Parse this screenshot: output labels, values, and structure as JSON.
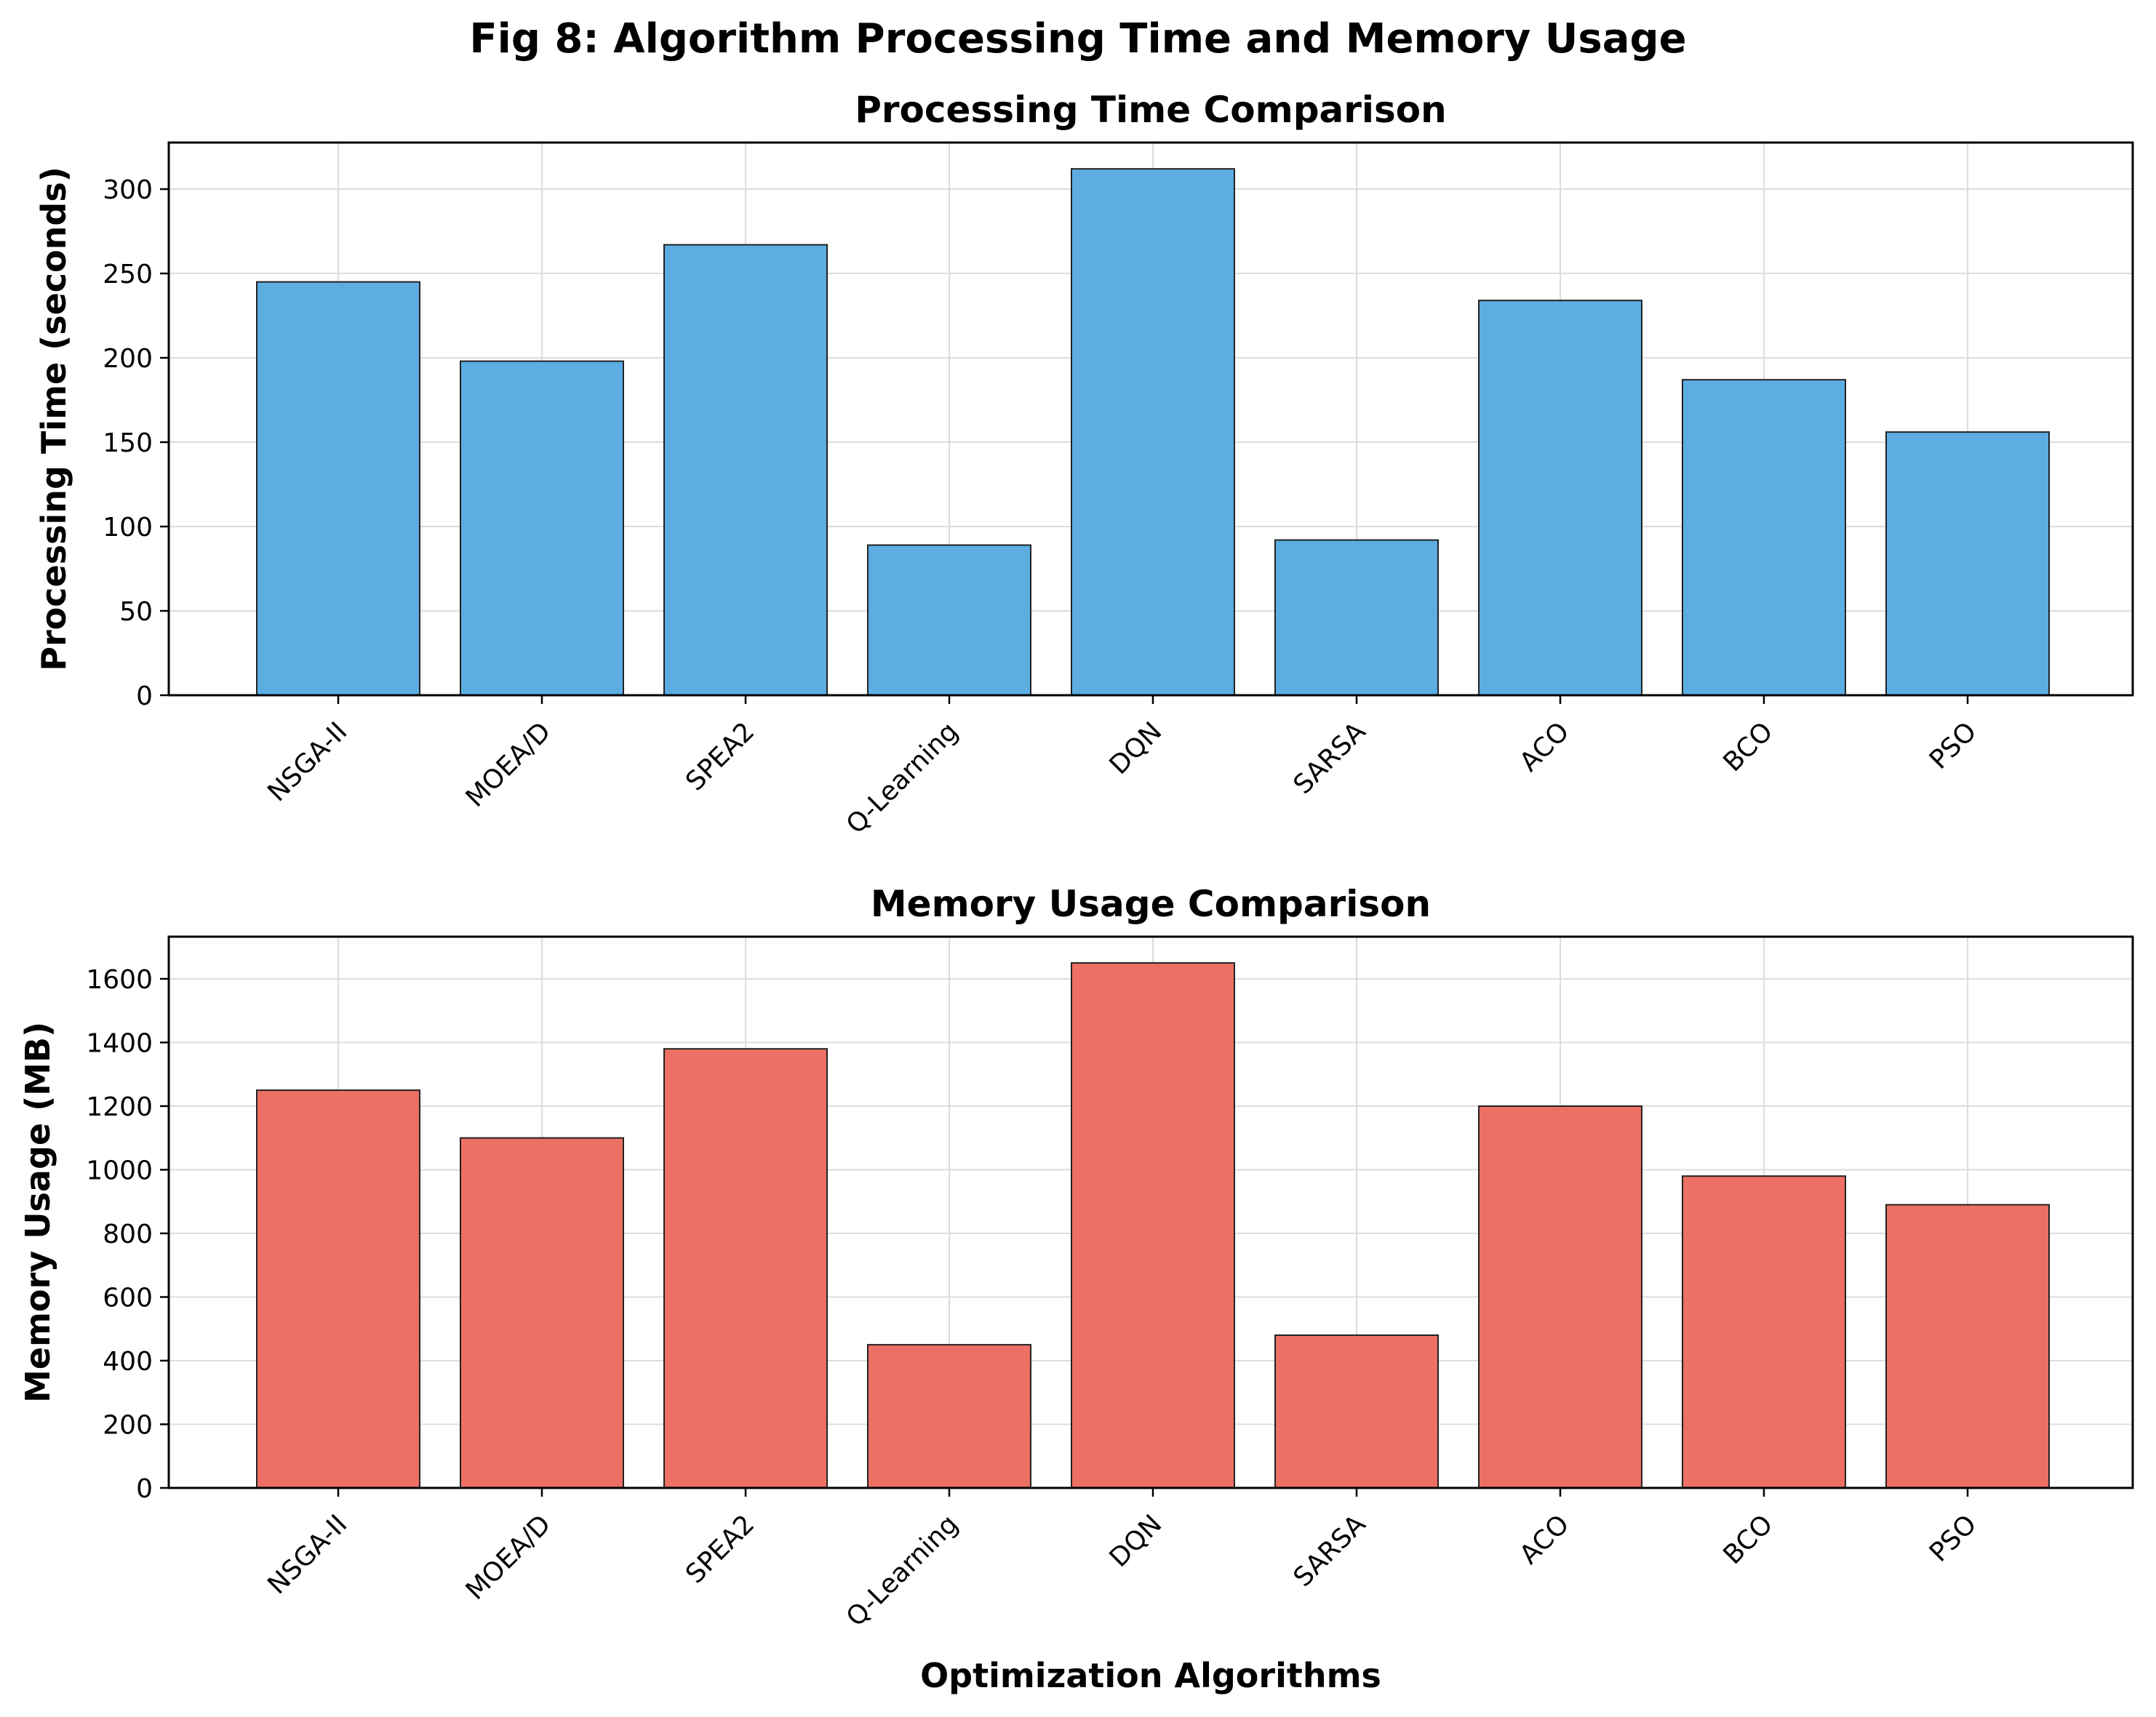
{
  "figure_title": "Fig 8: Algorithm Processing Time and Memory Usage",
  "chart_data": [
    {
      "type": "bar",
      "title": "Processing Time Comparison",
      "xlabel": "",
      "ylabel": "Processing Time (seconds)",
      "categories": [
        "NSGA-II",
        "MOEA/D",
        "SPEA2",
        "Q-Learning",
        "DQN",
        "SARSA",
        "ACO",
        "BCO",
        "PSO"
      ],
      "values": [
        245,
        198,
        267,
        89,
        312,
        92,
        234,
        187,
        156
      ],
      "ylim": [
        0,
        327.6
      ],
      "yticks": [
        0,
        50,
        100,
        150,
        200,
        250,
        300
      ],
      "grid": true,
      "color": "#5dade2"
    },
    {
      "type": "bar",
      "title": "Memory Usage Comparison",
      "xlabel": "Optimization Algorithms",
      "ylabel": "Memory Usage (MB)",
      "categories": [
        "NSGA-II",
        "MOEA/D",
        "SPEA2",
        "Q-Learning",
        "DQN",
        "SARSA",
        "ACO",
        "BCO",
        "PSO"
      ],
      "values": [
        1250,
        1100,
        1380,
        450,
        1650,
        480,
        1200,
        980,
        890
      ],
      "ylim": [
        0,
        1732.5
      ],
      "yticks": [
        0,
        200,
        400,
        600,
        800,
        1000,
        1200,
        1400,
        1600
      ],
      "grid": true,
      "color": "#ec7063"
    }
  ]
}
